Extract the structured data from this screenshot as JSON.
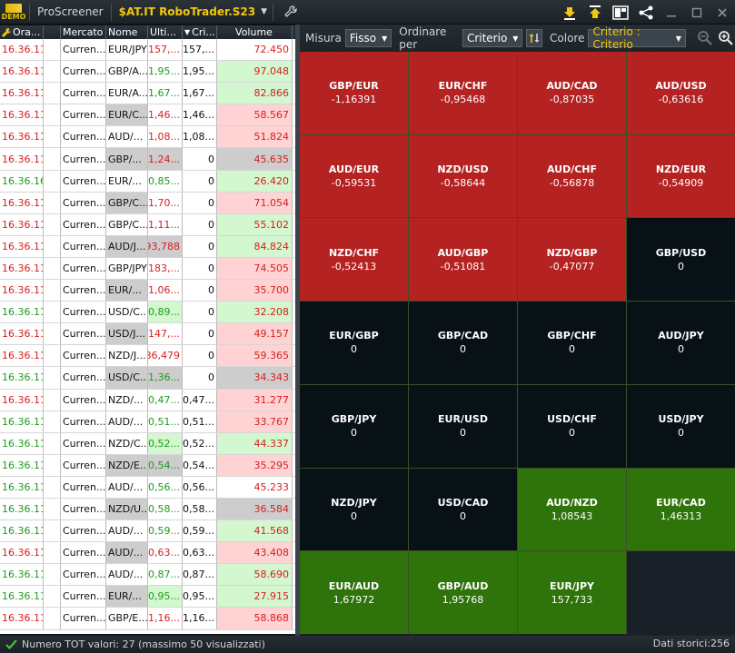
{
  "topbar": {
    "logo_text": "DEMO",
    "app_title": "ProScreener",
    "workspace": "$AT.IT RoboTrader.S23",
    "icons": [
      "download-icon",
      "upload-icon",
      "layout-icon",
      "share-icon",
      "minimize-icon",
      "maximize-icon",
      "close-icon"
    ]
  },
  "table": {
    "headers": [
      "Ora...",
      "",
      "Mercato",
      "Nome",
      "Ulti...",
      "Cri...",
      "Volume"
    ],
    "rows": [
      {
        "time": "16.36.11",
        "time_c": "red",
        "mkt": "Curren...",
        "name": "EUR/JPY",
        "last": "157,...",
        "last_c": "red",
        "last_bg": "white",
        "crit": "157,...",
        "vol": "72.450",
        "vol_bg": "white",
        "name_bg": "white"
      },
      {
        "time": "16.36.11",
        "time_c": "red",
        "mkt": "Curren...",
        "name": "GBP/A...",
        "last": "1,95...",
        "last_c": "green",
        "last_bg": "white",
        "crit": "1,95...",
        "vol": "97.048",
        "vol_bg": "green",
        "name_bg": "white"
      },
      {
        "time": "16.36.11",
        "time_c": "red",
        "mkt": "Curren...",
        "name": "EUR/A...",
        "last": "1,67...",
        "last_c": "green",
        "last_bg": "white",
        "crit": "1,67...",
        "vol": "82.866",
        "vol_bg": "green",
        "name_bg": "white"
      },
      {
        "time": "16.36.11",
        "time_c": "red",
        "mkt": "Curren...",
        "name": "EUR/C...",
        "last": "1,46...",
        "last_c": "red",
        "last_bg": "white",
        "crit": "1,46...",
        "vol": "58.567",
        "vol_bg": "pink",
        "name_bg": "gray"
      },
      {
        "time": "16.36.11",
        "time_c": "red",
        "mkt": "Curren...",
        "name": "AUD/...",
        "last": "1,08...",
        "last_c": "red",
        "last_bg": "white",
        "crit": "1,08...",
        "vol": "51.824",
        "vol_bg": "pink",
        "name_bg": "white"
      },
      {
        "time": "16.36.11",
        "time_c": "red",
        "mkt": "Curren...",
        "name": "GBP/...",
        "last": "1,24...",
        "last_c": "red",
        "last_bg": "gray",
        "crit": "0",
        "vol": "45.635",
        "vol_bg": "gray",
        "name_bg": "gray"
      },
      {
        "time": "16.36.16",
        "time_c": "green",
        "mkt": "Curren...",
        "name": "EUR/...",
        "last": "0,85...",
        "last_c": "green",
        "last_bg": "white",
        "crit": "0",
        "vol": "26.420",
        "vol_bg": "green",
        "name_bg": "white"
      },
      {
        "time": "16.36.11",
        "time_c": "red",
        "mkt": "Curren...",
        "name": "GBP/C...",
        "last": "1,70...",
        "last_c": "red",
        "last_bg": "white",
        "crit": "0",
        "vol": "71.054",
        "vol_bg": "pink",
        "name_bg": "gray"
      },
      {
        "time": "16.36.11",
        "time_c": "red",
        "mkt": "Curren...",
        "name": "GBP/C...",
        "last": "1,11...",
        "last_c": "red",
        "last_bg": "white",
        "crit": "0",
        "vol": "55.102",
        "vol_bg": "green",
        "name_bg": "white"
      },
      {
        "time": "16.36.11",
        "time_c": "red",
        "mkt": "Curren...",
        "name": "AUD/J...",
        "last": "93,788",
        "last_c": "red",
        "last_bg": "gray",
        "crit": "0",
        "vol": "84.824",
        "vol_bg": "green",
        "name_bg": "gray"
      },
      {
        "time": "16.36.11",
        "time_c": "red",
        "mkt": "Curren...",
        "name": "GBP/JPY",
        "last": "183,...",
        "last_c": "red",
        "last_bg": "white",
        "crit": "0",
        "vol": "74.505",
        "vol_bg": "pink",
        "name_bg": "white"
      },
      {
        "time": "16.36.11",
        "time_c": "red",
        "mkt": "Curren...",
        "name": "EUR/...",
        "last": "1,06...",
        "last_c": "red",
        "last_bg": "white",
        "crit": "0",
        "vol": "35.700",
        "vol_bg": "pink",
        "name_bg": "gray"
      },
      {
        "time": "16.36.11",
        "time_c": "green",
        "mkt": "Curren...",
        "name": "USD/C...",
        "last": "0,89...",
        "last_c": "green",
        "last_bg": "green",
        "crit": "0",
        "vol": "32.208",
        "vol_bg": "green",
        "name_bg": "white"
      },
      {
        "time": "16.36.11",
        "time_c": "red",
        "mkt": "Curren...",
        "name": "USD/J...",
        "last": "147,...",
        "last_c": "red",
        "last_bg": "white",
        "crit": "0",
        "vol": "49.157",
        "vol_bg": "pink",
        "name_bg": "gray"
      },
      {
        "time": "16.36.11",
        "time_c": "red",
        "mkt": "Curren...",
        "name": "NZD/J...",
        "last": "86,479",
        "last_c": "red",
        "last_bg": "white",
        "crit": "0",
        "vol": "59.365",
        "vol_bg": "pink",
        "name_bg": "white"
      },
      {
        "time": "16.36.11",
        "time_c": "green",
        "mkt": "Curren...",
        "name": "USD/C...",
        "last": "1,36...",
        "last_c": "green",
        "last_bg": "gray",
        "crit": "0",
        "vol": "34.343",
        "vol_bg": "gray",
        "name_bg": "gray"
      },
      {
        "time": "16.36.11",
        "time_c": "red",
        "mkt": "Curren...",
        "name": "NZD/...",
        "last": "0,47...",
        "last_c": "green",
        "last_bg": "white",
        "crit": "-0,47...",
        "vol": "31.277",
        "vol_bg": "pink",
        "name_bg": "white"
      },
      {
        "time": "16.36.11",
        "time_c": "green",
        "mkt": "Curren...",
        "name": "AUD/...",
        "last": "0,51...",
        "last_c": "green",
        "last_bg": "white",
        "crit": "-0,51...",
        "vol": "33.767",
        "vol_bg": "pink",
        "name_bg": "white"
      },
      {
        "time": "16.36.11",
        "time_c": "green",
        "mkt": "Curren...",
        "name": "NZD/C...",
        "last": "0,52...",
        "last_c": "green",
        "last_bg": "green",
        "crit": "-0,52...",
        "vol": "44.337",
        "vol_bg": "green",
        "name_bg": "white"
      },
      {
        "time": "16.36.11",
        "time_c": "green",
        "mkt": "Curren...",
        "name": "NZD/E...",
        "last": "0,54...",
        "last_c": "green",
        "last_bg": "gray",
        "crit": "-0,54...",
        "vol": "35.295",
        "vol_bg": "pink",
        "name_bg": "gray"
      },
      {
        "time": "16.36.11",
        "time_c": "green",
        "mkt": "Curren...",
        "name": "AUD/...",
        "last": "0,56...",
        "last_c": "green",
        "last_bg": "white",
        "crit": "-0,56...",
        "vol": "45.233",
        "vol_bg": "white",
        "name_bg": "white"
      },
      {
        "time": "16.36.11",
        "time_c": "green",
        "mkt": "Curren...",
        "name": "NZD/U...",
        "last": "0,58...",
        "last_c": "green",
        "last_bg": "white",
        "crit": "-0,58...",
        "vol": "36.584",
        "vol_bg": "gray",
        "name_bg": "gray"
      },
      {
        "time": "16.36.11",
        "time_c": "green",
        "mkt": "Curren...",
        "name": "AUD/...",
        "last": "0,59...",
        "last_c": "green",
        "last_bg": "white",
        "crit": "-0,59...",
        "vol": "41.568",
        "vol_bg": "green",
        "name_bg": "white"
      },
      {
        "time": "16.36.11",
        "time_c": "red",
        "mkt": "Curren...",
        "name": "AUD/...",
        "last": "0,63...",
        "last_c": "red",
        "last_bg": "white",
        "crit": "-0,63...",
        "vol": "43.408",
        "vol_bg": "pink",
        "name_bg": "gray"
      },
      {
        "time": "16.36.11",
        "time_c": "green",
        "mkt": "Curren...",
        "name": "AUD/...",
        "last": "0,87...",
        "last_c": "green",
        "last_bg": "white",
        "crit": "-0,87...",
        "vol": "58.690",
        "vol_bg": "green",
        "name_bg": "white"
      },
      {
        "time": "16.36.11",
        "time_c": "green",
        "mkt": "Curren...",
        "name": "EUR/...",
        "last": "0,95...",
        "last_c": "green",
        "last_bg": "green",
        "crit": "-0,95...",
        "vol": "27.915",
        "vol_bg": "green",
        "name_bg": "gray"
      },
      {
        "time": "16.36.11",
        "time_c": "red",
        "mkt": "Curren...",
        "name": "GBP/E...",
        "last": "1,16...",
        "last_c": "red",
        "last_bg": "white",
        "crit": "-1,16...",
        "vol": "58.868",
        "vol_bg": "pink",
        "name_bg": "white"
      }
    ]
  },
  "heatmap": {
    "toolbar": {
      "measure_label": "Misura",
      "measure_value": "Fisso",
      "sort_label": "Ordinare per",
      "sort_value": "Criterio",
      "color_label": "Colore",
      "color_value": "Criterio : Criterio"
    },
    "tiles": [
      {
        "sym": "GBP/EUR",
        "val": "-1,16391",
        "color": "red"
      },
      {
        "sym": "EUR/CHF",
        "val": "-0,95468",
        "color": "red"
      },
      {
        "sym": "AUD/CAD",
        "val": "-0,87035",
        "color": "red"
      },
      {
        "sym": "AUD/USD",
        "val": "-0,63616",
        "color": "red"
      },
      {
        "sym": "AUD/EUR",
        "val": "-0,59531",
        "color": "red"
      },
      {
        "sym": "NZD/USD",
        "val": "-0,58644",
        "color": "red"
      },
      {
        "sym": "AUD/CHF",
        "val": "-0,56878",
        "color": "red"
      },
      {
        "sym": "NZD/EUR",
        "val": "-0,54909",
        "color": "red"
      },
      {
        "sym": "NZD/CHF",
        "val": "-0,52413",
        "color": "red"
      },
      {
        "sym": "AUD/GBP",
        "val": "-0,51081",
        "color": "red"
      },
      {
        "sym": "NZD/GBP",
        "val": "-0,47077",
        "color": "red"
      },
      {
        "sym": "GBP/USD",
        "val": "0",
        "color": "dark"
      },
      {
        "sym": "EUR/GBP",
        "val": "0",
        "color": "dark"
      },
      {
        "sym": "GBP/CAD",
        "val": "0",
        "color": "dark"
      },
      {
        "sym": "GBP/CHF",
        "val": "0",
        "color": "dark"
      },
      {
        "sym": "AUD/JPY",
        "val": "0",
        "color": "dark"
      },
      {
        "sym": "GBP/JPY",
        "val": "0",
        "color": "dark"
      },
      {
        "sym": "EUR/USD",
        "val": "0",
        "color": "dark"
      },
      {
        "sym": "USD/CHF",
        "val": "0",
        "color": "dark"
      },
      {
        "sym": "USD/JPY",
        "val": "0",
        "color": "dark"
      },
      {
        "sym": "NZD/JPY",
        "val": "0",
        "color": "dark"
      },
      {
        "sym": "USD/CAD",
        "val": "0",
        "color": "dark"
      },
      {
        "sym": "AUD/NZD",
        "val": "1,08543",
        "color": "green"
      },
      {
        "sym": "EUR/CAD",
        "val": "1,46313",
        "color": "green"
      },
      {
        "sym": "EUR/AUD",
        "val": "1,67972",
        "color": "green"
      },
      {
        "sym": "GBP/AUD",
        "val": "1,95768",
        "color": "green"
      },
      {
        "sym": "EUR/JPY",
        "val": "157,733",
        "color": "green"
      },
      {
        "sym": "",
        "val": "",
        "color": "empty"
      }
    ]
  },
  "status": {
    "left": "Numero TOT valori: 27 (massimo 50 visualizzati)",
    "right": "Dati storici:256"
  },
  "colors": {
    "accent_gold": "#f1c80d",
    "tile_red": "#b52222",
    "tile_green": "#2f740a",
    "tile_dark": "#071116"
  }
}
